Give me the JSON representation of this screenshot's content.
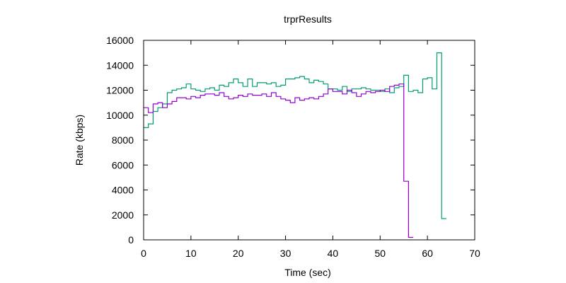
{
  "chart_data": {
    "type": "line",
    "title": "trprResults",
    "xlabel": "Time (sec)",
    "ylabel": "Rate (kbps)",
    "xlim": [
      0,
      70
    ],
    "ylim": [
      0,
      16000
    ],
    "xticks": [
      0,
      10,
      20,
      30,
      40,
      50,
      60,
      70
    ],
    "yticks": [
      0,
      2000,
      4000,
      6000,
      8000,
      10000,
      12000,
      14000,
      16000
    ],
    "grid": false,
    "legend": "none",
    "step": true,
    "series": [
      {
        "color": "#009e73",
        "values": [
          [
            0,
            9000
          ],
          [
            1,
            9300
          ],
          [
            2,
            10300
          ],
          [
            3,
            10600
          ],
          [
            4,
            10900
          ],
          [
            5,
            11800
          ],
          [
            6,
            12000
          ],
          [
            7,
            12100
          ],
          [
            8,
            12200
          ],
          [
            9,
            12500
          ],
          [
            10,
            12100
          ],
          [
            11,
            12000
          ],
          [
            12,
            11900
          ],
          [
            13,
            12100
          ],
          [
            14,
            12200
          ],
          [
            15,
            12000
          ],
          [
            16,
            12400
          ],
          [
            17,
            12300
          ],
          [
            18,
            12600
          ],
          [
            19,
            12900
          ],
          [
            20,
            12600
          ],
          [
            21,
            12300
          ],
          [
            22,
            12900
          ],
          [
            23,
            12300
          ],
          [
            24,
            12600
          ],
          [
            25,
            12600
          ],
          [
            26,
            12500
          ],
          [
            27,
            12600
          ],
          [
            28,
            12300
          ],
          [
            29,
            12400
          ],
          [
            30,
            12900
          ],
          [
            31,
            12900
          ],
          [
            32,
            13000
          ],
          [
            33,
            13100
          ],
          [
            34,
            12900
          ],
          [
            35,
            12600
          ],
          [
            36,
            12800
          ],
          [
            37,
            12700
          ],
          [
            38,
            12500
          ],
          [
            39,
            12100
          ],
          [
            40,
            12100
          ],
          [
            41,
            12000
          ],
          [
            42,
            12300
          ],
          [
            43,
            11900
          ],
          [
            44,
            12100
          ],
          [
            45,
            12100
          ],
          [
            46,
            12200
          ],
          [
            47,
            12100
          ],
          [
            48,
            12000
          ],
          [
            49,
            12000
          ],
          [
            50,
            11900
          ],
          [
            51,
            12100
          ],
          [
            52,
            11800
          ],
          [
            53,
            12200
          ],
          [
            54,
            12300
          ],
          [
            55,
            13200
          ],
          [
            56,
            11900
          ],
          [
            57,
            12000
          ],
          [
            58,
            11800
          ],
          [
            59,
            12900
          ],
          [
            60,
            13000
          ],
          [
            61,
            12100
          ],
          [
            62,
            15000
          ],
          [
            63,
            1700
          ],
          [
            64,
            1700
          ]
        ]
      },
      {
        "color": "#9400d3",
        "values": [
          [
            0,
            10600
          ],
          [
            1,
            10200
          ],
          [
            2,
            10900
          ],
          [
            3,
            11000
          ],
          [
            4,
            10600
          ],
          [
            5,
            10900
          ],
          [
            6,
            11100
          ],
          [
            7,
            11400
          ],
          [
            8,
            11400
          ],
          [
            9,
            11300
          ],
          [
            10,
            11500
          ],
          [
            11,
            11400
          ],
          [
            12,
            11600
          ],
          [
            13,
            11700
          ],
          [
            14,
            11700
          ],
          [
            15,
            11600
          ],
          [
            16,
            11800
          ],
          [
            17,
            11500
          ],
          [
            18,
            11300
          ],
          [
            19,
            11400
          ],
          [
            20,
            11600
          ],
          [
            21,
            11500
          ],
          [
            22,
            11700
          ],
          [
            23,
            11600
          ],
          [
            24,
            11600
          ],
          [
            25,
            11700
          ],
          [
            26,
            11500
          ],
          [
            27,
            11800
          ],
          [
            28,
            11500
          ],
          [
            29,
            11300
          ],
          [
            30,
            11200
          ],
          [
            31,
            11000
          ],
          [
            32,
            11400
          ],
          [
            33,
            11200
          ],
          [
            34,
            11300
          ],
          [
            35,
            11400
          ],
          [
            36,
            11300
          ],
          [
            37,
            11500
          ],
          [
            38,
            11700
          ],
          [
            39,
            12100
          ],
          [
            40,
            11900
          ],
          [
            41,
            11900
          ],
          [
            42,
            11700
          ],
          [
            43,
            12000
          ],
          [
            44,
            11800
          ],
          [
            45,
            11500
          ],
          [
            46,
            11700
          ],
          [
            47,
            11900
          ],
          [
            48,
            11800
          ],
          [
            49,
            11900
          ],
          [
            50,
            12000
          ],
          [
            51,
            11900
          ],
          [
            52,
            12300
          ],
          [
            53,
            12400
          ],
          [
            54,
            12500
          ],
          [
            55,
            4700
          ],
          [
            56,
            200
          ],
          [
            57,
            200
          ]
        ]
      }
    ]
  }
}
